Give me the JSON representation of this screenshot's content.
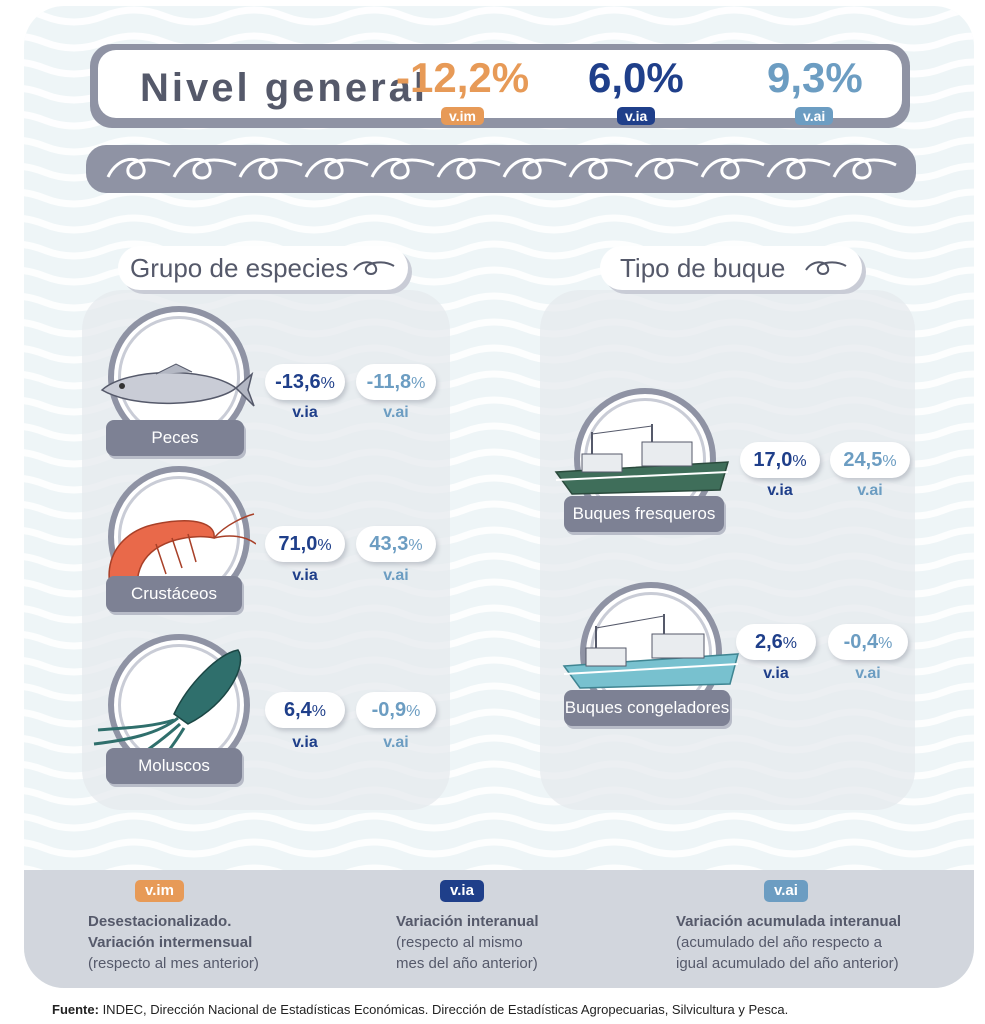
{
  "header": {
    "title": "Nivel general",
    "vim_value": "-12,2%",
    "via_value": "6,0%",
    "vai_value": "9,3%",
    "vim_badge": "v.im",
    "via_badge": "v.ia",
    "vai_badge": "v.ai"
  },
  "colors": {
    "vim": "#e79a57",
    "via": "#1f3f8a",
    "vai": "#6c9dc2",
    "grey": "#8f93a4"
  },
  "sections": {
    "species_title": "Grupo de especies",
    "vessel_title": "Tipo de buque"
  },
  "species": [
    {
      "label": "Peces",
      "via": "-13,6",
      "vai": "-11,8",
      "pct": "%",
      "via_sub": "v.ia",
      "vai_sub": "v.ai",
      "icon": "fish-icon"
    },
    {
      "label": "Crustáceos",
      "via": "71,0",
      "vai": "43,3",
      "pct": "%",
      "via_sub": "v.ia",
      "vai_sub": "v.ai",
      "icon": "shrimp-icon"
    },
    {
      "label": "Moluscos",
      "via": "6,4",
      "vai": "-0,9",
      "pct": "%",
      "via_sub": "v.ia",
      "vai_sub": "v.ai",
      "icon": "squid-icon"
    }
  ],
  "vessels": [
    {
      "label": "Buques fresqueros",
      "via": "17,0",
      "vai": "24,5",
      "pct": "%",
      "via_sub": "v.ia",
      "vai_sub": "v.ai",
      "icon": "fresh-boat-icon"
    },
    {
      "label": "Buques congeladores",
      "via": "2,6",
      "vai": "-0,4",
      "pct": "%",
      "via_sub": "v.ia",
      "vai_sub": "v.ai",
      "icon": "freezer-boat-icon"
    }
  ],
  "legend": {
    "vim_badge": "v.im",
    "vim_line1": "Desestacionalizado.",
    "vim_line2": "Variación intermensual",
    "vim_line3": "(respecto al mes anterior)",
    "via_badge": "v.ia",
    "via_line1": "Variación interanual",
    "via_line2": "(respecto al mismo",
    "via_line3": "mes del año anterior)",
    "vai_badge": "v.ai",
    "vai_line1": "Variación acumulada interanual",
    "vai_line2": "(acumulado del año respecto a",
    "vai_line3": "igual acumulado del año anterior)"
  },
  "source": {
    "label": "Fuente:",
    "text": " INDEC, Dirección Nacional de Estadísticas Económicas. Dirección de Estadísticas Agropecuarias, Silvicultura y Pesca."
  }
}
